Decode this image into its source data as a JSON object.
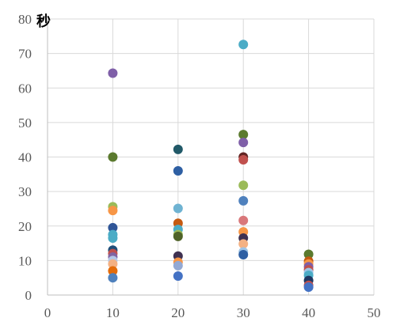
{
  "chart_data": {
    "type": "scatter",
    "ylabel": "秒",
    "xlim": [
      0,
      50
    ],
    "ylim": [
      0,
      80
    ],
    "x_ticks": [
      "0",
      "10",
      "20",
      "30",
      "40",
      "50"
    ],
    "y_ticks": [
      "0",
      "10",
      "20",
      "30",
      "40",
      "50",
      "60",
      "70",
      "80"
    ],
    "grid": "vertical-and-horizontal",
    "points": [
      {
        "x": 10,
        "y": 64.3,
        "color": "#7f5fa8"
      },
      {
        "x": 10,
        "y": 40.0,
        "color": "#5b7a2e"
      },
      {
        "x": 10,
        "y": 25.6,
        "color": "#9bbb59"
      },
      {
        "x": 10,
        "y": 24.5,
        "color": "#f79646"
      },
      {
        "x": 10,
        "y": 19.5,
        "color": "#2f5597"
      },
      {
        "x": 10,
        "y": 17.5,
        "color": "#4aacc6"
      },
      {
        "x": 10,
        "y": 16.5,
        "color": "#4bacc6"
      },
      {
        "x": 10,
        "y": 13.0,
        "color": "#1f4e79"
      },
      {
        "x": 10,
        "y": 12.0,
        "color": "#c0504d"
      },
      {
        "x": 10,
        "y": 11.0,
        "color": "#8064a2"
      },
      {
        "x": 10,
        "y": 10.0,
        "color": "#b4c7e7"
      },
      {
        "x": 10,
        "y": 9.0,
        "color": "#f4b183"
      },
      {
        "x": 10,
        "y": 7.0,
        "color": "#e46c0a"
      },
      {
        "x": 10,
        "y": 5.0,
        "color": "#4f81bd"
      },
      {
        "x": 20,
        "y": 42.2,
        "color": "#215968"
      },
      {
        "x": 20,
        "y": 36.0,
        "color": "#2e5fa3"
      },
      {
        "x": 20,
        "y": 25.1,
        "color": "#6fb3d2"
      },
      {
        "x": 20,
        "y": 20.8,
        "color": "#c55a11"
      },
      {
        "x": 20,
        "y": 19.0,
        "color": "#4bacc6"
      },
      {
        "x": 20,
        "y": 17.5,
        "color": "#9bbb59"
      },
      {
        "x": 20,
        "y": 17.0,
        "color": "#4f6228"
      },
      {
        "x": 20,
        "y": 11.3,
        "color": "#3f3151"
      },
      {
        "x": 20,
        "y": 9.5,
        "color": "#f79646"
      },
      {
        "x": 20,
        "y": 8.5,
        "color": "#93a9d4"
      },
      {
        "x": 20,
        "y": 5.5,
        "color": "#4472c4"
      },
      {
        "x": 30,
        "y": 72.6,
        "color": "#4bacc6"
      },
      {
        "x": 30,
        "y": 46.5,
        "color": "#5b7a2e"
      },
      {
        "x": 30,
        "y": 44.2,
        "color": "#7f5fa8"
      },
      {
        "x": 30,
        "y": 40.0,
        "color": "#632523"
      },
      {
        "x": 30,
        "y": 39.2,
        "color": "#c0504d"
      },
      {
        "x": 30,
        "y": 31.8,
        "color": "#9bbb59"
      },
      {
        "x": 30,
        "y": 27.3,
        "color": "#4f81bd"
      },
      {
        "x": 30,
        "y": 21.6,
        "color": "#d9777a"
      },
      {
        "x": 30,
        "y": 18.3,
        "color": "#f79646"
      },
      {
        "x": 30,
        "y": 16.5,
        "color": "#3f3151"
      },
      {
        "x": 30,
        "y": 14.8,
        "color": "#f4b183"
      },
      {
        "x": 30,
        "y": 12.5,
        "color": "#9dc3e6"
      },
      {
        "x": 30,
        "y": 11.7,
        "color": "#2e5fa3"
      },
      {
        "x": 40,
        "y": 11.8,
        "color": "#5b7a2e"
      },
      {
        "x": 40,
        "y": 9.8,
        "color": "#c55a11"
      },
      {
        "x": 40,
        "y": 9.0,
        "color": "#f79646"
      },
      {
        "x": 40,
        "y": 8.2,
        "color": "#7f5fa8"
      },
      {
        "x": 40,
        "y": 7.3,
        "color": "#c0504d"
      },
      {
        "x": 40,
        "y": 6.5,
        "color": "#9dc3e6"
      },
      {
        "x": 40,
        "y": 5.7,
        "color": "#4bacc6"
      },
      {
        "x": 40,
        "y": 4.2,
        "color": "#1f3864"
      },
      {
        "x": 40,
        "y": 2.8,
        "color": "#c0504d"
      },
      {
        "x": 40,
        "y": 2.3,
        "color": "#4472c4"
      }
    ]
  }
}
